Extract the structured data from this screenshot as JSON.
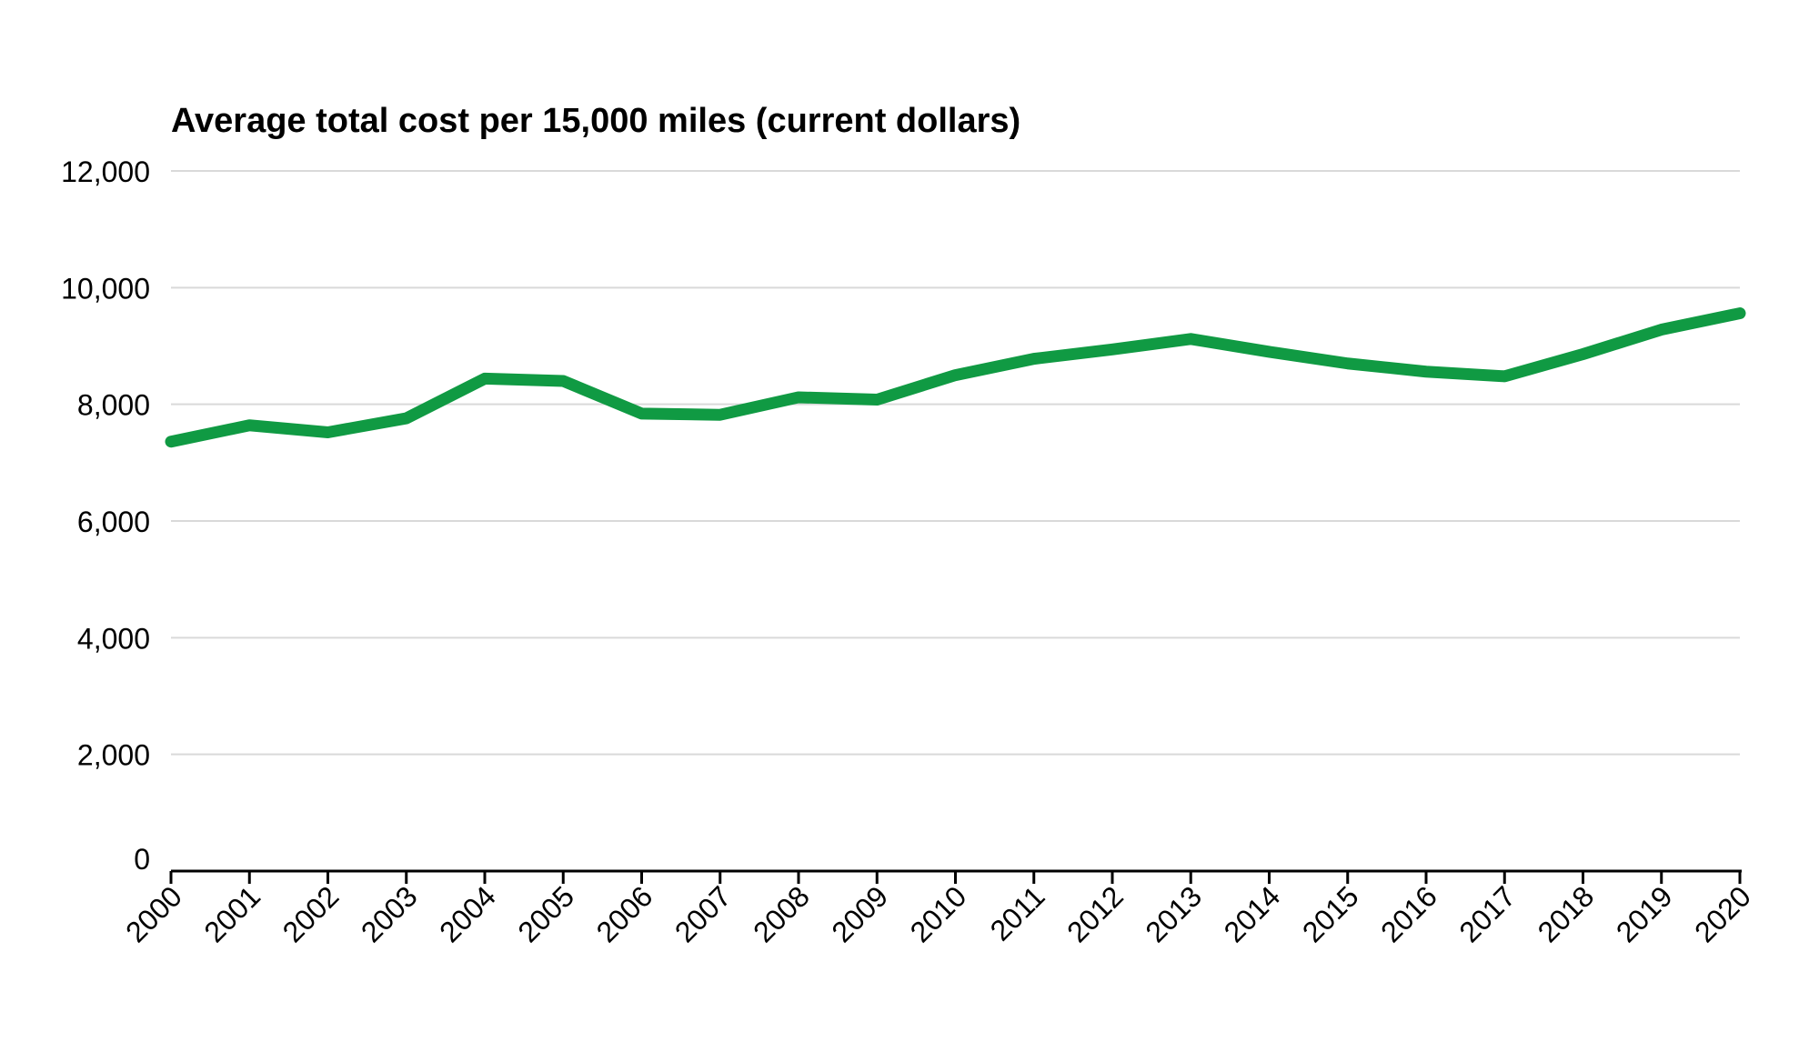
{
  "chart_data": {
    "type": "line",
    "title": "Average total cost per 15,000 miles (current dollars)",
    "xlabel": "",
    "ylabel": "",
    "categories": [
      "2000",
      "2001",
      "2002",
      "2003",
      "2004",
      "2005",
      "2006",
      "2007",
      "2008",
      "2009",
      "2010",
      "2011",
      "2012",
      "2013",
      "2014",
      "2015",
      "2016",
      "2017",
      "2018",
      "2019",
      "2020"
    ],
    "series": [
      {
        "values": [
          7360,
          7640,
          7520,
          7760,
          8440,
          8400,
          7840,
          7820,
          8120,
          8080,
          8500,
          8780,
          8940,
          9120,
          8900,
          8700,
          8560,
          8480,
          8860,
          9280,
          9560
        ]
      }
    ],
    "ylim": [
      0,
      12000
    ],
    "yticks": [
      0,
      2000,
      4000,
      6000,
      8000,
      10000,
      12000
    ],
    "ytick_labels": [
      "0",
      "2,000",
      "4,000",
      "6,000",
      "8,000",
      "10,000",
      "12,000"
    ],
    "grid": "horizontal",
    "colors": {
      "line": "#109a43",
      "grid": "#d9d9d9",
      "axis": "#000000"
    }
  }
}
